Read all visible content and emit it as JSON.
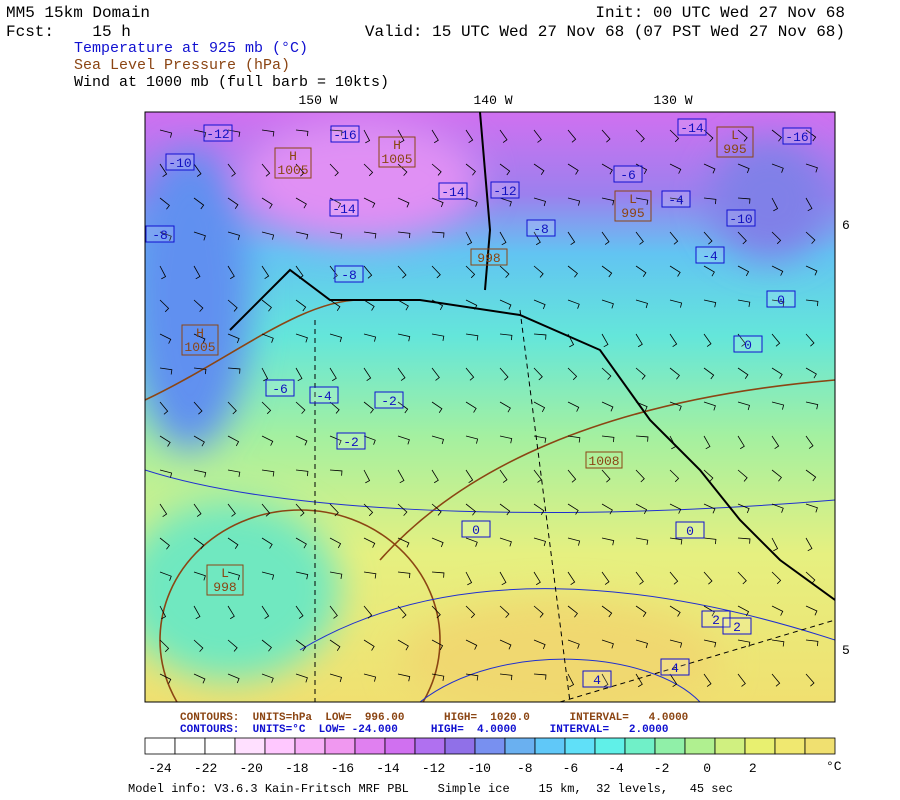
{
  "header": {
    "domain": "MM5 15km Domain",
    "forecast": "Fcst:    15 h",
    "init": "Init: 00 UTC Wed 27 Nov 68",
    "valid": "Valid: 15 UTC Wed 27 Nov 68 (07 PST Wed 27 Nov 68)"
  },
  "fields": [
    "Temperature at 925 mb (°C)",
    "Sea Level Pressure (hPa)",
    "Wind at 1000 mb (full barb = 10kts)"
  ],
  "map": {
    "longitudes": [
      "150 W",
      "140 W",
      "130 W"
    ],
    "latitudes": [
      "6",
      "5"
    ],
    "temperature_labels": [
      -12,
      -10,
      -16,
      -14,
      -8,
      -8,
      -14,
      -12,
      -8,
      -14,
      -16,
      -6,
      -4,
      -10,
      -4,
      0,
      0,
      -6,
      -4,
      -2,
      -2,
      0,
      0,
      2,
      2,
      4,
      4
    ],
    "pressure_labels": [
      {
        "marker": "H",
        "value": 1005
      },
      {
        "marker": "H",
        "value": 1005
      },
      {
        "marker": "L",
        "value": 995
      },
      {
        "value": 998
      },
      {
        "marker": "H",
        "value": 1005
      },
      {
        "value": 1008
      },
      {
        "marker": "L",
        "value": 998
      },
      {
        "marker": "L",
        "value": 995
      }
    ]
  },
  "contour_info": [
    "CONTOURS:  UNITS=hPa  LOW=  996.00      HIGH=  1020.0      INTERVAL=   4.0000",
    "CONTOURS:  UNITS=°C  LOW= -24.000     HIGH=  4.0000     INTERVAL=   2.0000"
  ],
  "colorbar": {
    "labels": [
      -24,
      -22,
      -20,
      -18,
      -16,
      -14,
      -12,
      -10,
      -8,
      -6,
      -4,
      -2,
      0,
      2
    ],
    "unit": "°C"
  },
  "model_info": "Model info: V3.6.3 Kain-Fritsch MRF PBL    Simple ice    15 km,  32 levels,   45 sec"
}
